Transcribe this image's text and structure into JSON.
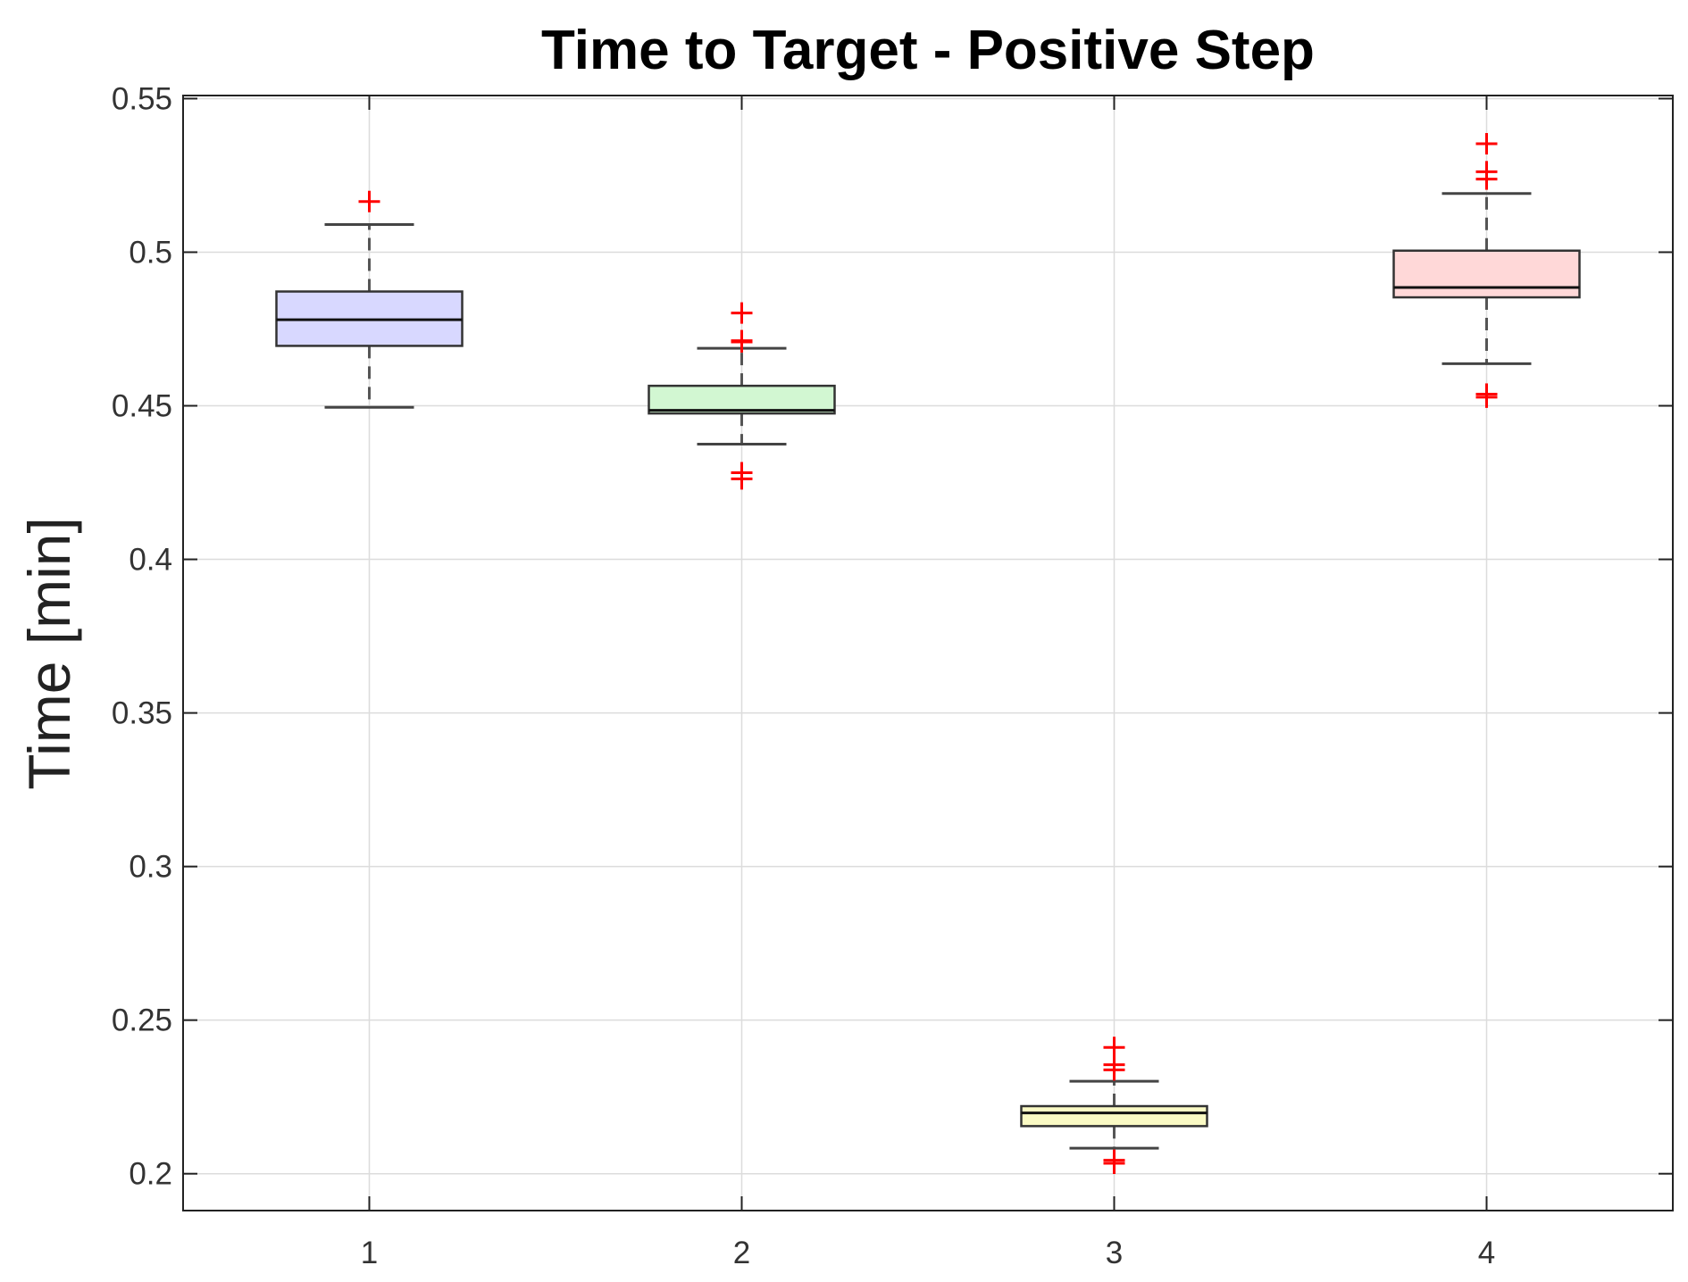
{
  "chart_data": {
    "type": "box",
    "title": "Time to Target - Positive Step",
    "ylabel": "Time [min]",
    "xlabel": "",
    "ylim": [
      0.188,
      0.551
    ],
    "xlim": [
      0.5,
      4.5
    ],
    "yticks": [
      0.2,
      0.25,
      0.3,
      0.35,
      0.4,
      0.45,
      0.5,
      0.55
    ],
    "ytick_labels": [
      "0.2",
      "0.25",
      "0.3",
      "0.35",
      "0.4",
      "0.45",
      "0.5",
      "0.55"
    ],
    "categories": [
      "1",
      "2",
      "3",
      "4"
    ],
    "grid": true,
    "boxes": [
      {
        "category": "1",
        "q1": 0.4695,
        "median": 0.478,
        "q3": 0.4872,
        "whisker_low": 0.4495,
        "whisker_high": 0.509,
        "outliers": [
          0.5165
        ],
        "color": "#d8d8ff"
      },
      {
        "category": "2",
        "q1": 0.4475,
        "median": 0.4485,
        "q3": 0.4565,
        "whisker_low": 0.4375,
        "whisker_high": 0.4687,
        "outliers": [
          0.4802,
          0.4712,
          0.4708,
          0.4282,
          0.4262
        ],
        "color": "#d2f7d2"
      },
      {
        "category": "3",
        "q1": 0.2155,
        "median": 0.2198,
        "q3": 0.222,
        "whisker_low": 0.2083,
        "whisker_high": 0.2301,
        "outliers": [
          0.2411,
          0.2355,
          0.2338,
          0.2044,
          0.2034
        ],
        "color": "#fafac4"
      },
      {
        "category": "4",
        "q1": 0.4853,
        "median": 0.4885,
        "q3": 0.5005,
        "whisker_low": 0.4637,
        "whisker_high": 0.5191,
        "outliers": [
          0.5353,
          0.5262,
          0.5238,
          0.4538,
          0.4528
        ],
        "color": "#ffd8d8"
      }
    ],
    "outlier_color": "#ff0000"
  }
}
